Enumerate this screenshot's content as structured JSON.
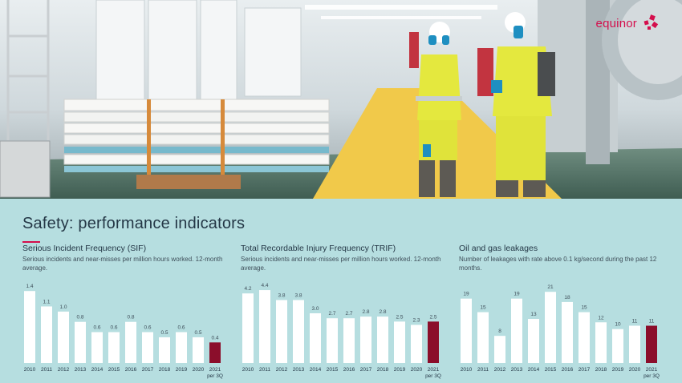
{
  "brand": {
    "name": "equinor",
    "accent": "#d40e4c"
  },
  "page": {
    "title": "Safety: performance indicators"
  },
  "colors": {
    "bar": "#ffffff",
    "highlight": "#8b0e2b",
    "text": "#243746",
    "background": "#b6dee0"
  },
  "chart_data": [
    {
      "type": "bar",
      "title": "Serious Incident Frequency (SIF)",
      "subtitle": "Serious incidents and near-misses per million hours worked. 12-month average.",
      "categories": [
        "2010",
        "2011",
        "2012",
        "2013",
        "2014",
        "2015",
        "2016",
        "2017",
        "2018",
        "2019",
        "2020",
        "2021"
      ],
      "values": [
        1.4,
        1.1,
        1.0,
        0.8,
        0.6,
        0.6,
        0.8,
        0.6,
        0.5,
        0.6,
        0.5,
        0.4
      ],
      "labels": [
        "1.4",
        "1.1",
        "1.0",
        "0.8",
        "0.6",
        "0.6",
        "0.8",
        "0.6",
        "0.5",
        "0.6",
        "0.5",
        "0.4"
      ],
      "highlight_index": 11,
      "last_note": "per 3Q",
      "ylim": [
        0,
        1.45
      ]
    },
    {
      "type": "bar",
      "title": "Total Recordable Injury Frequency  (TRIF)",
      "subtitle": "Serious incidents and near-misses per million hours worked. 12-month average.",
      "categories": [
        "2010",
        "2011",
        "2012",
        "2013",
        "2014",
        "2015",
        "2016",
        "2017",
        "2018",
        "2019",
        "2020",
        "2021"
      ],
      "values": [
        4.2,
        4.4,
        3.8,
        3.8,
        3.0,
        2.7,
        2.7,
        2.8,
        2.8,
        2.5,
        2.3,
        2.5
      ],
      "labels": [
        "4.2",
        "4.4",
        "3.8",
        "3.8",
        "3.0",
        "2.7",
        "2.7",
        "2.8",
        "2.8",
        "2.5",
        "2.3",
        "2.5"
      ],
      "highlight_index": 11,
      "last_note": "per 3Q",
      "ylim": [
        0,
        4.5
      ]
    },
    {
      "type": "bar",
      "title": "Oil and gas leakages",
      "subtitle": "Number of leakages with rate above 0.1 kg/second during the past 12 months.",
      "categories": [
        "2010",
        "2011",
        "2012",
        "2013",
        "2014",
        "2015",
        "2016",
        "2017",
        "2018",
        "2019",
        "2020",
        "2021"
      ],
      "values": [
        19,
        15,
        8,
        19,
        13,
        21,
        18,
        15,
        12,
        10,
        11,
        11
      ],
      "labels": [
        "19",
        "15",
        "8",
        "19",
        "13",
        "21",
        "18",
        "15",
        "12",
        "10",
        "11",
        "11"
      ],
      "highlight_index": 11,
      "last_note": "per 3Q",
      "ylim": [
        0,
        22
      ]
    }
  ]
}
